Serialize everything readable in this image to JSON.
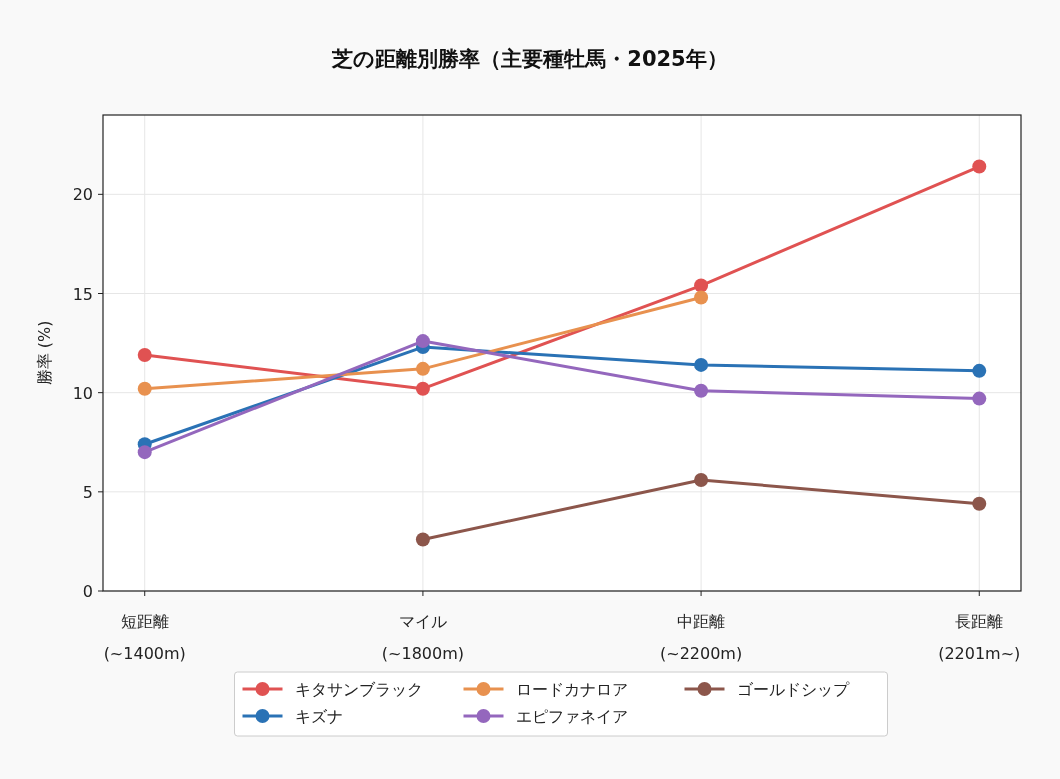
{
  "chart_data": {
    "type": "line",
    "title": "芝の距離別勝率（主要種牡馬・2025年）",
    "ylabel": "勝率 (%)",
    "categories": [
      "短距離\n(~1400m)",
      "マイル\n(~1800m)",
      "中距離\n(~2200m)",
      "長距離\n(2201m~)"
    ],
    "series": [
      {
        "name": "キタサンブラック",
        "color": "#e05252",
        "values": [
          11.9,
          10.2,
          15.4,
          21.4
        ]
      },
      {
        "name": "キズナ",
        "color": "#2a72b5",
        "values": [
          7.4,
          12.3,
          11.4,
          11.1
        ]
      },
      {
        "name": "ロードカナロア",
        "color": "#e8914f",
        "values": [
          10.2,
          11.2,
          14.8,
          null
        ]
      },
      {
        "name": "エピファネイア",
        "color": "#9467bd",
        "values": [
          7.0,
          12.6,
          10.1,
          9.7
        ]
      },
      {
        "name": "ゴールドシップ",
        "color": "#8c564b",
        "values": [
          null,
          2.6,
          5.6,
          4.4
        ]
      }
    ],
    "ylim": [
      0,
      24
    ],
    "yticks": [
      0,
      5,
      10,
      15,
      20
    ],
    "grid": true,
    "legend": "bottom",
    "marker": "circle",
    "line_style": "solid"
  }
}
